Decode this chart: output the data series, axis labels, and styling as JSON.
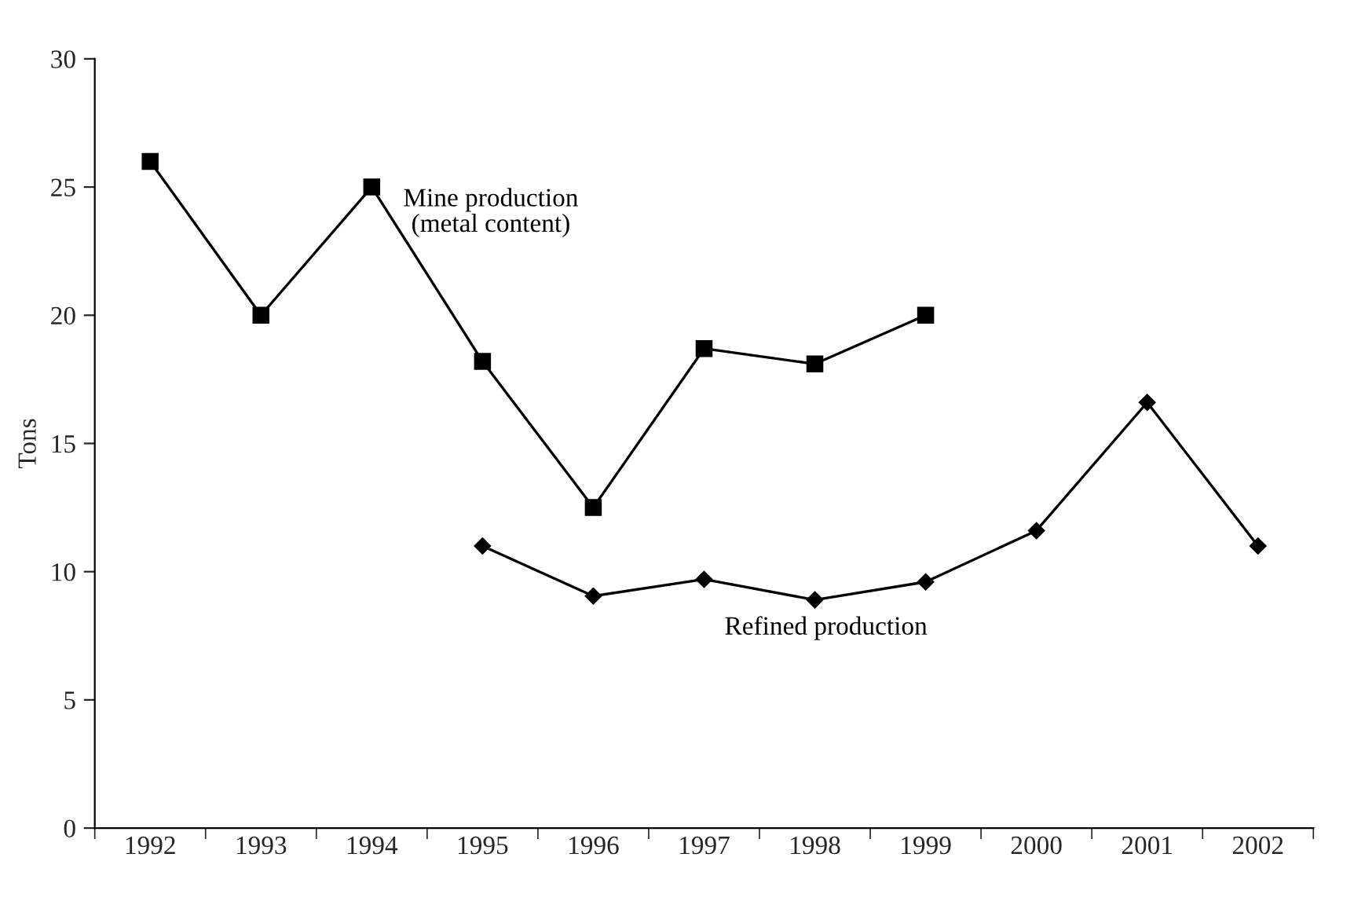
{
  "chart_data": {
    "type": "line",
    "ylabel": "Tons",
    "categories": [
      "1992",
      "1993",
      "1994",
      "1995",
      "1996",
      "1997",
      "1998",
      "1999",
      "2000",
      "2001",
      "2002"
    ],
    "series": [
      {
        "name": "Mine production\n(metal content)",
        "color": "#000000",
        "marker": "square",
        "values": [
          26.0,
          20.0,
          25.0,
          18.2,
          12.5,
          18.7,
          18.1,
          20.0,
          null,
          null,
          null
        ]
      },
      {
        "name": "Refined production",
        "color": "#000000",
        "marker": "diamond",
        "values": [
          null,
          null,
          null,
          11.0,
          9.05,
          9.7,
          8.9,
          9.6,
          11.6,
          16.6,
          11.0
        ]
      }
    ],
    "ylim": [
      0,
      30
    ],
    "yticks": [
      0,
      5,
      10,
      15,
      20,
      25,
      30
    ],
    "grid": false,
    "legend": false
  }
}
